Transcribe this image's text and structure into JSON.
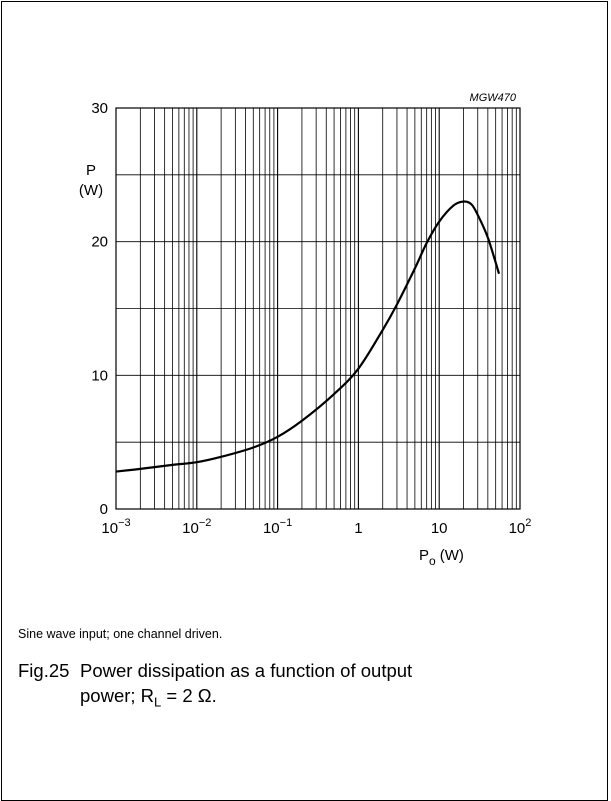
{
  "chart_data": {
    "type": "line",
    "code": "MGW470",
    "ylabel_sym": "P",
    "ylabel_unit": "(W)",
    "xlabel_sym": "P",
    "xlabel_sub": "o",
    "xlabel_unit": "(W)",
    "x_scale": "log",
    "xlim": [
      0.001,
      100
    ],
    "ylim": [
      0,
      30
    ],
    "x_ticks": [
      {
        "base": "10",
        "exp": "−3"
      },
      {
        "base": "10",
        "exp": "−2"
      },
      {
        "base": "10",
        "exp": "−1"
      },
      {
        "base": "1",
        "exp": ""
      },
      {
        "base": "10",
        "exp": ""
      },
      {
        "base": "10",
        "exp": "2"
      }
    ],
    "y_ticks": [
      "0",
      "10",
      "20",
      "30"
    ],
    "grid": true,
    "series": [
      {
        "x": [
          0.001,
          0.002,
          0.005,
          0.01,
          0.02,
          0.05,
          0.1,
          0.2,
          0.5,
          1,
          2,
          3,
          5,
          7,
          10,
          15,
          20,
          25,
          30,
          40,
          55
        ],
        "y": [
          2.8,
          3.0,
          3.3,
          3.5,
          3.9,
          4.6,
          5.4,
          6.6,
          8.6,
          10.5,
          13.4,
          15.3,
          18.0,
          19.9,
          21.5,
          22.7,
          23.0,
          22.8,
          22.0,
          20.3,
          17.6
        ]
      }
    ]
  },
  "note": "Sine wave input; one channel driven.",
  "caption": {
    "fig": "Fig.25",
    "line1": "Power dissipation as a function of output",
    "line2_pre": "power; R",
    "line2_sub": "L",
    "line2_post": " = 2 Ω."
  }
}
